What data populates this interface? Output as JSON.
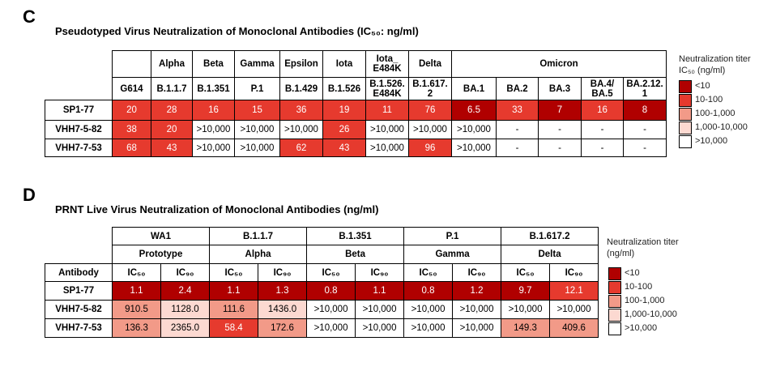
{
  "panel_c": {
    "label": "C",
    "title": "Pseudotyped Virus Neutralization of Monoclonal Antibodies (IC₅₀: ng/ml)",
    "header_row_1": [
      "Alpha",
      "Beta",
      "Gamma",
      "Epsilon",
      "Iota",
      "Iota_ E484K",
      "Delta",
      "Omicron"
    ],
    "header_row_2": [
      "G614",
      "B.1.1.7",
      "B.1.351",
      "P.1",
      "B.1.429",
      "B.1.526",
      "B.1.526. E484K",
      "B.1.617. 2",
      "BA.1",
      "BA.2",
      "BA.3",
      "BA.4/ BA.5",
      "BA.2.12. 1"
    ],
    "rows": [
      [
        "SP1-77",
        "20",
        "28",
        "16",
        "15",
        "36",
        "19",
        "11",
        "76",
        "6.5",
        "33",
        "7",
        "16",
        "8"
      ],
      [
        "VHH7-5-82",
        "38",
        "20",
        ">10,000",
        ">10,000",
        ">10,000",
        "26",
        ">10,000",
        ">10,000",
        ">10,000",
        "-",
        "-",
        "-",
        "-"
      ],
      [
        "VHH7-7-53",
        "68",
        "43",
        ">10,000",
        ">10,000",
        "62",
        "43",
        ">10,000",
        "96",
        ">10,000",
        "-",
        "-",
        "-",
        "-"
      ]
    ],
    "legend": {
      "title": "Neutralization titer",
      "subtitle": "IC₅₀ (ng/ml)",
      "items": [
        {
          "label": "<10",
          "color": "#b00000"
        },
        {
          "label": "10-100",
          "color": "#e63a2e"
        },
        {
          "label": "100-1,000",
          "color": "#f29a88"
        },
        {
          "label": "1,000-10,000",
          "color": "#fcd9d1"
        },
        {
          "label": ">10,000",
          "color": "#ffffff"
        }
      ]
    }
  },
  "panel_d": {
    "label": "D",
    "title": "PRNT Live Virus Neutralization of Monoclonal Antibodies (ng/ml)",
    "header_row_1": [
      "WA1",
      "B.1.1.7",
      "B.1.351",
      "P.1",
      "B.1.617.2"
    ],
    "header_row_2": [
      "Prototype",
      "Alpha",
      "Beta",
      "Gamma",
      "Delta"
    ],
    "header_row_3": [
      "Antibody",
      "IC₅₀",
      "IC₉₀",
      "IC₅₀",
      "IC₉₀",
      "IC₅₀",
      "IC₉₀",
      "IC₅₀",
      "IC₉₀",
      "IC₅₀",
      "IC₉₀"
    ],
    "rows": [
      [
        "SP1-77",
        "1.1",
        "2.4",
        "1.1",
        "1.3",
        "0.8",
        "1.1",
        "0.8",
        "1.2",
        "9.7",
        "12.1"
      ],
      [
        "VHH7-5-82",
        "910.5",
        "1128.0",
        "111.6",
        "1436.0",
        ">10,000",
        ">10,000",
        ">10,000",
        ">10,000",
        ">10,000",
        ">10,000"
      ],
      [
        "VHH7-7-53",
        "136.3",
        "2365.0",
        "58.4",
        "172.6",
        ">10,000",
        ">10,000",
        ">10,000",
        ">10,000",
        "149.3",
        "409.6"
      ]
    ],
    "legend": {
      "title": "Neutralization titer",
      "subtitle": "(ng/ml)",
      "items": [
        {
          "label": "<10",
          "color": "#b00000"
        },
        {
          "label": "10-100",
          "color": "#e63a2e"
        },
        {
          "label": "100-1,000",
          "color": "#f29a88"
        },
        {
          "label": "1,000-10,000",
          "color": "#fcd9d1"
        },
        {
          "label": ">10,000",
          "color": "#ffffff"
        }
      ]
    }
  }
}
